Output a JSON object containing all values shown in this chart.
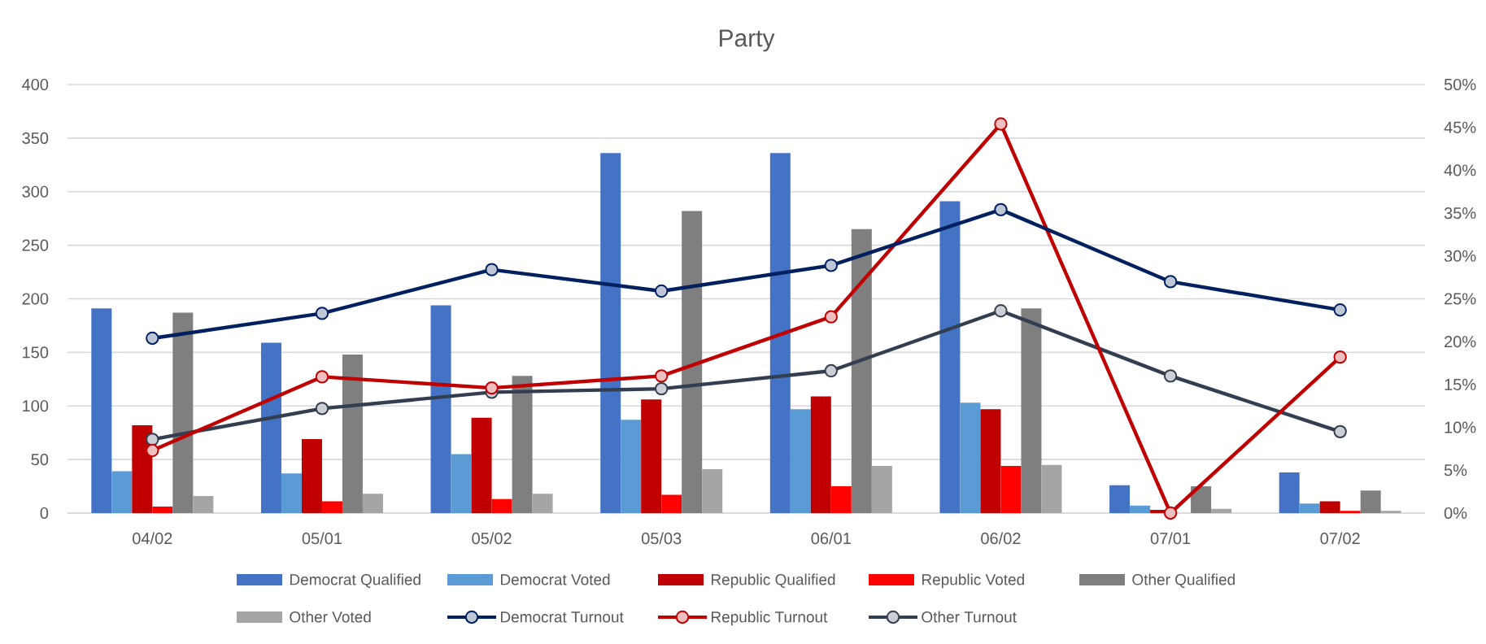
{
  "chart_data": {
    "type": "bar",
    "title": "Party",
    "categories": [
      "04/02",
      "05/01",
      "05/02",
      "05/03",
      "06/01",
      "06/02",
      "07/01",
      "07/02"
    ],
    "series": [
      {
        "name": "Democrat Qualified",
        "color": "#4472c4",
        "values": [
          191,
          159,
          194,
          336,
          336,
          291,
          26,
          38
        ]
      },
      {
        "name": "Democrat Voted",
        "color": "#5b9bd5",
        "values": [
          39,
          37,
          55,
          87,
          97,
          103,
          7,
          9
        ]
      },
      {
        "name": "Republic Qualified",
        "color": "#c00000",
        "values": [
          82,
          69,
          89,
          106,
          109,
          97,
          3,
          11
        ]
      },
      {
        "name": "Republic Voted",
        "color": "#ff0000",
        "values": [
          6,
          11,
          13,
          17,
          25,
          44,
          0,
          2
        ]
      },
      {
        "name": "Other Qualified",
        "color": "#7f7f7f",
        "values": [
          187,
          148,
          128,
          282,
          265,
          191,
          25,
          21
        ]
      },
      {
        "name": "Other Voted",
        "color": "#a5a5a5",
        "values": [
          16,
          18,
          18,
          41,
          44,
          45,
          4,
          2
        ]
      },
      {
        "name": "Democrat Turnout",
        "type": "line",
        "axis": "y2",
        "color": "#002060",
        "values": [
          20.4,
          23.3,
          28.4,
          25.9,
          28.9,
          35.4,
          27,
          23.7
        ]
      },
      {
        "name": "Republic Turnout",
        "type": "line",
        "axis": "y2",
        "color": "#c00000",
        "values": [
          7.3,
          15.9,
          14.6,
          16,
          22.9,
          45.4,
          0,
          18.2
        ]
      },
      {
        "name": "Other Turnout",
        "type": "line",
        "axis": "y2",
        "color": "#333f50",
        "values": [
          8.6,
          12.2,
          14.1,
          14.5,
          16.6,
          23.6,
          16,
          9.5
        ]
      }
    ],
    "ylim": [
      0,
      400
    ],
    "yticks": [
      0,
      50,
      100,
      150,
      200,
      250,
      300,
      350,
      400
    ],
    "y2lim": [
      0,
      50
    ],
    "y2ticks": [
      {
        "value": 0,
        "label": "0%"
      },
      {
        "value": 5,
        "label": "5%"
      },
      {
        "value": 10,
        "label": "10%"
      },
      {
        "value": 15,
        "label": "15%"
      },
      {
        "value": 20,
        "label": "20%"
      },
      {
        "value": 25,
        "label": "25%"
      },
      {
        "value": 30,
        "label": "30%"
      },
      {
        "value": 35,
        "label": "35%"
      },
      {
        "value": 40,
        "label": "40%"
      },
      {
        "value": 45,
        "label": "45%"
      },
      {
        "value": 50,
        "label": "50%"
      }
    ],
    "grid": "y",
    "legend": "bottom",
    "marker": "circle"
  }
}
